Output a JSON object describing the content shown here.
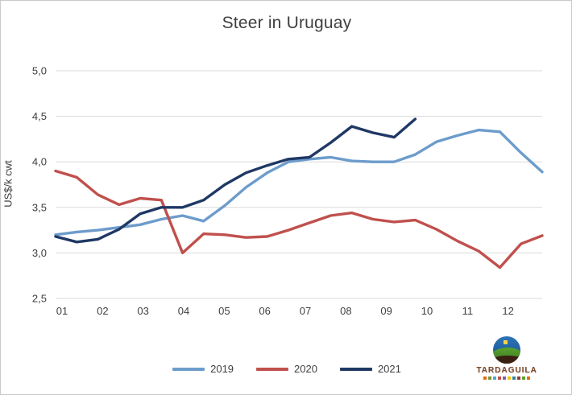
{
  "window": {
    "background": "#ffffff",
    "border_color": "#c9c9c9"
  },
  "chart_data": {
    "type": "line",
    "title": "Steer in Uruguay",
    "xlabel": "",
    "ylabel": "US$/k cwt",
    "ylim": [
      2.5,
      5.0
    ],
    "y_tick_values": [
      5.0,
      4.5,
      4.0,
      3.5,
      3.0,
      2.5
    ],
    "y_tick_labels": [
      "5,0",
      "4,5",
      "4,0",
      "3,5",
      "3,0",
      "2,5"
    ],
    "x_tick_labels": [
      "01",
      "02",
      "03",
      "04",
      "05",
      "06",
      "07",
      "08",
      "09",
      "10",
      "11",
      "12"
    ],
    "grid": "horizontal-only",
    "gridline_color": "#d9d9d9",
    "axis_text_color": "#3f3f3f",
    "legend_position": "bottom",
    "x_note": "two points per month (semi-monthly), Jan through Dec; 2021 series ends late September",
    "series": [
      {
        "name": "2019",
        "color": "#6d9ccb",
        "line_width": 3.4,
        "values": [
          3.2,
          3.23,
          3.25,
          3.28,
          3.31,
          3.37,
          3.41,
          3.35,
          3.52,
          3.72,
          3.88,
          4.0,
          4.03,
          4.05,
          4.01,
          4.0,
          4.0,
          4.08,
          4.22,
          4.29,
          4.35,
          4.33,
          4.1,
          3.89
        ]
      },
      {
        "name": "2020",
        "color": "#c0504d",
        "line_width": 3.4,
        "values": [
          3.9,
          3.83,
          3.64,
          3.53,
          3.6,
          3.58,
          3.0,
          3.21,
          3.2,
          3.17,
          3.18,
          3.25,
          3.33,
          3.41,
          3.44,
          3.37,
          3.34,
          3.36,
          3.26,
          3.13,
          3.02,
          2.84,
          3.1,
          3.19
        ]
      },
      {
        "name": "2021",
        "color": "#1f3864",
        "line_width": 3.4,
        "values": [
          3.18,
          3.12,
          3.15,
          3.26,
          3.43,
          3.5,
          3.5,
          3.58,
          3.75,
          3.88,
          3.96,
          4.03,
          4.05,
          4.21,
          4.39,
          4.32,
          4.27,
          4.47
        ]
      }
    ]
  },
  "logo": {
    "wordmark": "TARDAGUILA",
    "wordmark_color": "#7b4a2d",
    "square_colors": [
      "#e36c0a",
      "#76923c",
      "#4bacc6",
      "#c0504d",
      "#8064a2",
      "#f2c314",
      "#31859c",
      "#943634",
      "#5aa12e",
      "#e36c0a"
    ]
  }
}
